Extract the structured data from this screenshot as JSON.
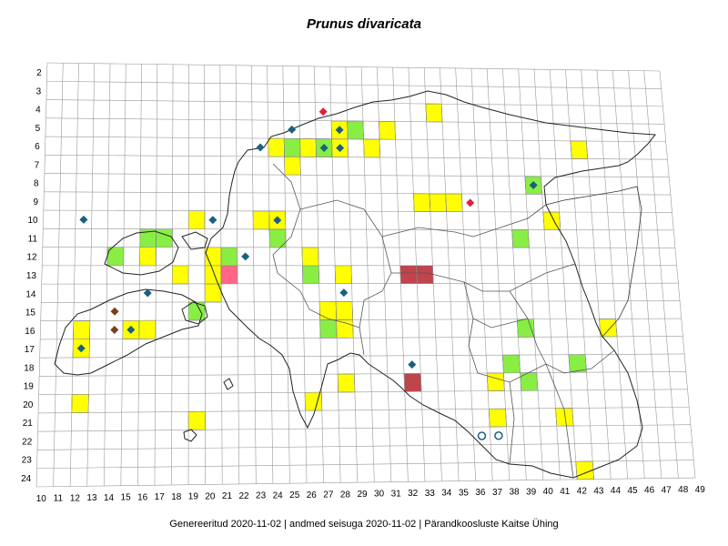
{
  "title": "Prunus divaricata",
  "footer": "Genereeritud 2020-11-02  |  andmed seisuga 2020-11-02  |  Pärandkoosluste Kaitse Ühing",
  "colors": {
    "yellow": "#ffff00",
    "green": "#88ee44",
    "darkred": "#c0444c",
    "pink": "#ff6688",
    "blue_marker": "#1a6080",
    "red_marker": "#e0203a",
    "brown_marker": "#7a3e22",
    "grid": "#999999",
    "border": "#222222"
  },
  "map": {
    "col_labels": [
      "10",
      "11",
      "12",
      "13",
      "14",
      "15",
      "16",
      "17",
      "18",
      "19",
      "20",
      "21",
      "22",
      "23",
      "24",
      "25",
      "26",
      "27",
      "28",
      "29",
      "30",
      "31",
      "32",
      "33",
      "34",
      "35",
      "36",
      "37",
      "38",
      "39",
      "40",
      "41",
      "42",
      "43",
      "44",
      "45",
      "46",
      "47",
      "48",
      "49"
    ],
    "row_labels": [
      "2",
      "3",
      "4",
      "5",
      "6",
      "7",
      "8",
      "9",
      "10",
      "11",
      "12",
      "13",
      "14",
      "15",
      "16",
      "17",
      "18",
      "19",
      "20",
      "21",
      "22",
      "23",
      "24"
    ],
    "cells": [
      {
        "c": 34,
        "r": 4,
        "k": "yellow"
      },
      {
        "c": 28,
        "r": 5,
        "k": "yellow"
      },
      {
        "c": 29,
        "r": 5,
        "k": "green"
      },
      {
        "c": 31,
        "r": 5,
        "k": "yellow"
      },
      {
        "c": 24,
        "r": 6,
        "k": "yellow"
      },
      {
        "c": 25,
        "r": 6,
        "k": "green"
      },
      {
        "c": 26,
        "r": 6,
        "k": "yellow"
      },
      {
        "c": 27,
        "r": 6,
        "k": "green"
      },
      {
        "c": 28,
        "r": 6,
        "k": "yellow"
      },
      {
        "c": 30,
        "r": 6,
        "k": "yellow"
      },
      {
        "c": 43,
        "r": 6,
        "k": "yellow"
      },
      {
        "c": 25,
        "r": 7,
        "k": "yellow"
      },
      {
        "c": 40,
        "r": 8,
        "k": "green"
      },
      {
        "c": 33,
        "r": 9,
        "k": "yellow"
      },
      {
        "c": 34,
        "r": 9,
        "k": "yellow"
      },
      {
        "c": 35,
        "r": 9,
        "k": "yellow"
      },
      {
        "c": 19,
        "r": 10,
        "k": "yellow"
      },
      {
        "c": 23,
        "r": 10,
        "k": "yellow"
      },
      {
        "c": 24,
        "r": 10,
        "k": "yellow"
      },
      {
        "c": 41,
        "r": 10,
        "k": "yellow"
      },
      {
        "c": 16,
        "r": 11,
        "k": "green"
      },
      {
        "c": 17,
        "r": 11,
        "k": "green"
      },
      {
        "c": 24,
        "r": 11,
        "k": "green"
      },
      {
        "c": 39,
        "r": 11,
        "k": "green"
      },
      {
        "c": 14,
        "r": 12,
        "k": "green"
      },
      {
        "c": 16,
        "r": 12,
        "k": "yellow"
      },
      {
        "c": 20,
        "r": 12,
        "k": "yellow"
      },
      {
        "c": 21,
        "r": 12,
        "k": "green"
      },
      {
        "c": 26,
        "r": 12,
        "k": "yellow"
      },
      {
        "c": 18,
        "r": 13,
        "k": "yellow"
      },
      {
        "c": 20,
        "r": 13,
        "k": "yellow"
      },
      {
        "c": 21,
        "r": 13,
        "k": "pink"
      },
      {
        "c": 26,
        "r": 13,
        "k": "green"
      },
      {
        "c": 28,
        "r": 13,
        "k": "yellow"
      },
      {
        "c": 32,
        "r": 13,
        "k": "darkred"
      },
      {
        "c": 33,
        "r": 13,
        "k": "darkred"
      },
      {
        "c": 20,
        "r": 14,
        "k": "yellow"
      },
      {
        "c": 19,
        "r": 15,
        "k": "green"
      },
      {
        "c": 27,
        "r": 15,
        "k": "yellow"
      },
      {
        "c": 28,
        "r": 15,
        "k": "yellow"
      },
      {
        "c": 12,
        "r": 16,
        "k": "yellow"
      },
      {
        "c": 15,
        "r": 16,
        "k": "yellow"
      },
      {
        "c": 16,
        "r": 16,
        "k": "yellow"
      },
      {
        "c": 27,
        "r": 16,
        "k": "green"
      },
      {
        "c": 28,
        "r": 16,
        "k": "yellow"
      },
      {
        "c": 39,
        "r": 16,
        "k": "green"
      },
      {
        "c": 44,
        "r": 16,
        "k": "yellow"
      },
      {
        "c": 12,
        "r": 17,
        "k": "yellow"
      },
      {
        "c": 38,
        "r": 18,
        "k": "green"
      },
      {
        "c": 42,
        "r": 18,
        "k": "green"
      },
      {
        "c": 28,
        "r": 19,
        "k": "yellow"
      },
      {
        "c": 32,
        "r": 19,
        "k": "darkred"
      },
      {
        "c": 37,
        "r": 19,
        "k": "yellow"
      },
      {
        "c": 39,
        "r": 19,
        "k": "green"
      },
      {
        "c": 12,
        "r": 20,
        "k": "yellow"
      },
      {
        "c": 26,
        "r": 20,
        "k": "yellow"
      },
      {
        "c": 19,
        "r": 21,
        "k": "yellow"
      },
      {
        "c": 37,
        "r": 21,
        "k": "yellow"
      },
      {
        "c": 41,
        "r": 21,
        "k": "yellow"
      },
      {
        "c": 42,
        "r": 24,
        "k": "yellow"
      }
    ],
    "blue_markers": [
      {
        "c": 25,
        "r": 5
      },
      {
        "c": 28,
        "r": 5
      },
      {
        "c": 23,
        "r": 6
      },
      {
        "c": 27,
        "r": 6
      },
      {
        "c": 28,
        "r": 6
      },
      {
        "c": 40,
        "r": 8
      },
      {
        "c": 12,
        "r": 10
      },
      {
        "c": 20,
        "r": 10
      },
      {
        "c": 24,
        "r": 10
      },
      {
        "c": 22,
        "r": 12
      },
      {
        "c": 16,
        "r": 14
      },
      {
        "c": 28,
        "r": 14
      },
      {
        "c": 15,
        "r": 16
      },
      {
        "c": 12,
        "r": 17
      },
      {
        "c": 32,
        "r": 18
      }
    ],
    "red_markers": [
      {
        "c": 27,
        "r": 4
      },
      {
        "c": 36,
        "r": 9
      }
    ],
    "brown_markers": [
      {
        "c": 14,
        "r": 15
      },
      {
        "c": 14,
        "r": 16
      }
    ],
    "hollow_markers": [
      {
        "c": 36,
        "r": 22
      },
      {
        "c": 37,
        "r": 22
      }
    ]
  }
}
